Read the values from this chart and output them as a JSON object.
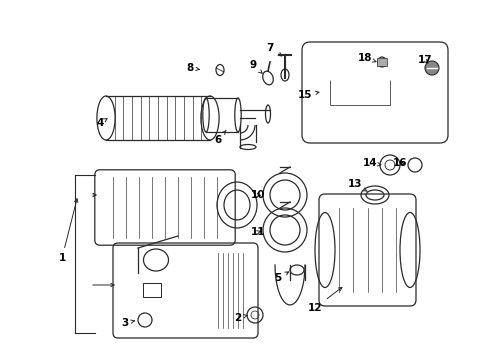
{
  "bg_color": "#ffffff",
  "line_color": "#2a2a2a",
  "label_color": "#000000",
  "figsize": [
    4.89,
    3.6
  ],
  "dpi": 100,
  "label_fontsize": 7.5,
  "arrow_lw": 0.7,
  "component_lw": 0.9
}
